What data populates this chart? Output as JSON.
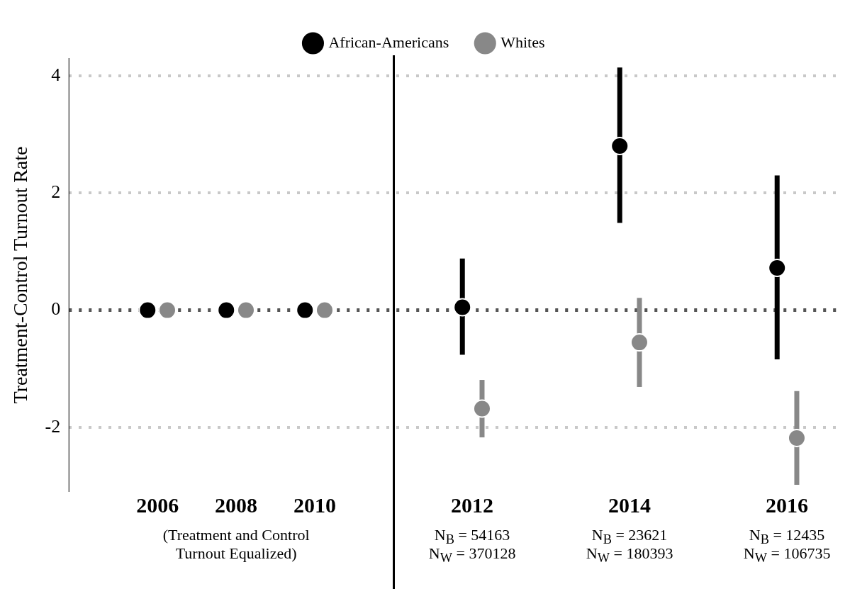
{
  "chart_data": {
    "type": "scatter",
    "ylabel": "Treatment-Control Turnout Rate",
    "categories": [
      "2006",
      "2008",
      "2010",
      null,
      "2012",
      null,
      "2014",
      null,
      "2016"
    ],
    "series": [
      {
        "name": "African-Americans",
        "color": "#000000",
        "values": [
          0,
          0,
          0,
          null,
          0.05,
          null,
          2.8,
          null,
          0.72
        ],
        "errors": [
          null,
          null,
          null,
          null,
          [
            -0.76,
            0.88
          ],
          null,
          [
            1.49,
            4.14
          ],
          null,
          [
            -0.84,
            2.3
          ]
        ]
      },
      {
        "name": "Whites",
        "color": "#888888",
        "values": [
          0,
          0,
          0,
          null,
          -1.68,
          null,
          -0.55,
          null,
          -2.18
        ],
        "errors": [
          null,
          null,
          null,
          null,
          [
            -2.17,
            -1.19
          ],
          null,
          [
            -1.31,
            0.21
          ],
          null,
          [
            -2.98,
            -1.38
          ]
        ]
      }
    ],
    "ylim": [
      -3.1,
      4.3
    ],
    "yticks": [
      -2,
      0,
      2,
      4
    ],
    "grid": "y",
    "legend": "top",
    "marker": "circle",
    "ref_lines": [
      {
        "axis": "y",
        "value": 0,
        "color": "#555555",
        "line_style": "dotted"
      }
    ],
    "annotations": [
      "(Treatment and Control Turnout Equalized)",
      "N$_{B}$ = 54163",
      "N$_{W}$ = 370128",
      "N$_{B}$ = 23621",
      "N$_{W}$ = 180393",
      "N$_{B}$ = 12435",
      "N$_{W}$ = 106735"
    ]
  }
}
